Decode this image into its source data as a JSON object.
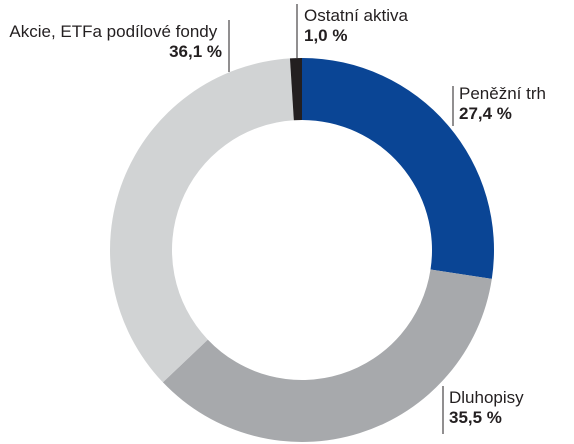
{
  "chart_data": {
    "type": "donut",
    "categories": [
      "Peněžní trh",
      "Dluhopisy",
      "Akcie, ETFa podílové fondy",
      "Ostatní aktiva"
    ],
    "values": [
      27.4,
      35.5,
      36.1,
      1.0
    ],
    "value_labels": [
      "27,4 %",
      "35,5 %",
      "36,1 %",
      "1,0 %"
    ],
    "colors": [
      "#0a4595",
      "#a7a9ac",
      "#d1d3d4",
      "#231f20"
    ]
  }
}
